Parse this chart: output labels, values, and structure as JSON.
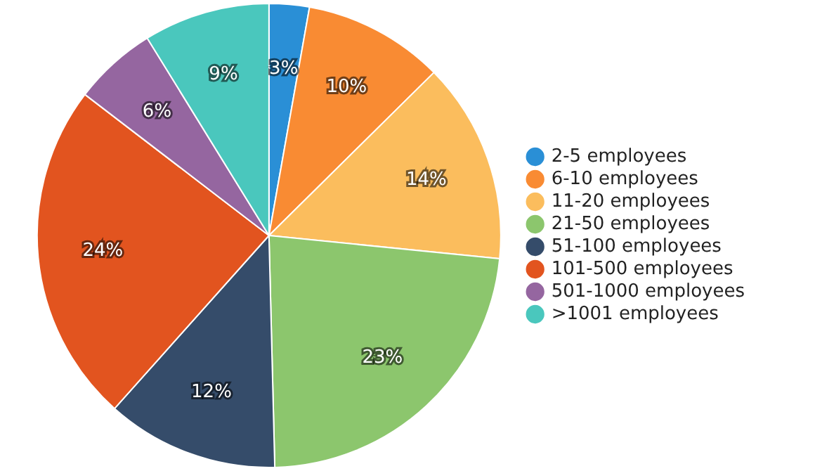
{
  "chart_data": {
    "type": "pie",
    "categories": [
      "2-5 employees",
      "6-10 employees",
      "11-20 employees",
      "21-50 employees",
      "51-100 employees",
      "101-500 employees",
      "501-1000 employees",
      ">1001 employees"
    ],
    "values": [
      2.8,
      9.8,
      14,
      23,
      12,
      23.8,
      5.8,
      8.8
    ],
    "value_labels": [
      "3%",
      "10%",
      "14%",
      "23%",
      "12%",
      "24%",
      "6%",
      "9%"
    ],
    "colors": [
      "#2a8fd6",
      "#f98b33",
      "#fbbd5d",
      "#8cc66d",
      "#354c6a",
      "#e2541f",
      "#9566a0",
      "#4ac7bd"
    ],
    "legend": "right"
  }
}
